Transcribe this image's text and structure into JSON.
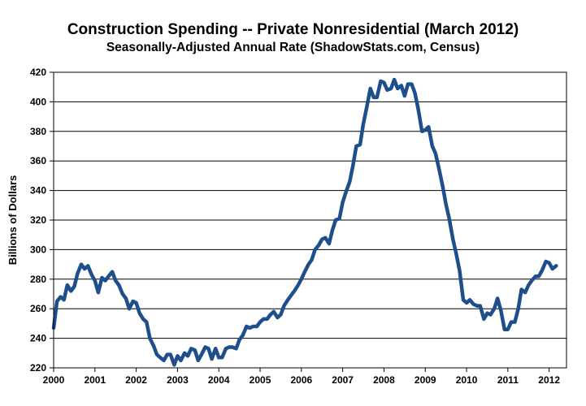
{
  "chart_data": {
    "type": "line",
    "title": "Construction Spending -- Private Nonresidential (March 2012)",
    "subtitle": "Seasonally-Adjusted Annual Rate (ShadowStats.com, Census)",
    "xlabel": "",
    "ylabel": "Billions of Dollars",
    "xlim": [
      2000,
      2012.42
    ],
    "ylim": [
      220,
      420
    ],
    "x_ticks": [
      "2000",
      "2001",
      "2002",
      "2003",
      "2004",
      "2005",
      "2006",
      "2007",
      "2008",
      "2009",
      "2010",
      "2011",
      "2012"
    ],
    "y_ticks": [
      "220",
      "240",
      "260",
      "280",
      "300",
      "320",
      "340",
      "360",
      "380",
      "400",
      "420"
    ],
    "grid": true,
    "legend": "none",
    "series": [
      {
        "name": "Private Nonresidential",
        "color": "#1f4e8c",
        "x": [
          2000.0,
          2000.08,
          2000.17,
          2000.25,
          2000.33,
          2000.42,
          2000.5,
          2000.58,
          2000.67,
          2000.75,
          2000.83,
          2000.92,
          2001.0,
          2001.08,
          2001.17,
          2001.25,
          2001.33,
          2001.42,
          2001.5,
          2001.58,
          2001.67,
          2001.75,
          2001.83,
          2001.92,
          2002.0,
          2002.08,
          2002.17,
          2002.25,
          2002.33,
          2002.42,
          2002.5,
          2002.58,
          2002.67,
          2002.75,
          2002.83,
          2002.92,
          2003.0,
          2003.08,
          2003.17,
          2003.25,
          2003.33,
          2003.42,
          2003.5,
          2003.58,
          2003.67,
          2003.75,
          2003.83,
          2003.92,
          2004.0,
          2004.08,
          2004.17,
          2004.25,
          2004.33,
          2004.42,
          2004.5,
          2004.58,
          2004.67,
          2004.75,
          2004.83,
          2004.92,
          2005.0,
          2005.08,
          2005.17,
          2005.25,
          2005.33,
          2005.42,
          2005.5,
          2005.58,
          2005.67,
          2005.75,
          2005.83,
          2005.92,
          2006.0,
          2006.08,
          2006.17,
          2006.25,
          2006.33,
          2006.42,
          2006.5,
          2006.58,
          2006.67,
          2006.75,
          2006.83,
          2006.92,
          2007.0,
          2007.08,
          2007.17,
          2007.25,
          2007.33,
          2007.42,
          2007.5,
          2007.58,
          2007.67,
          2007.75,
          2007.83,
          2007.92,
          2008.0,
          2008.08,
          2008.17,
          2008.25,
          2008.33,
          2008.42,
          2008.5,
          2008.58,
          2008.67,
          2008.75,
          2008.83,
          2008.92,
          2009.0,
          2009.08,
          2009.17,
          2009.25,
          2009.33,
          2009.42,
          2009.5,
          2009.58,
          2009.67,
          2009.75,
          2009.83,
          2009.92,
          2010.0,
          2010.08,
          2010.17,
          2010.25,
          2010.33,
          2010.42,
          2010.5,
          2010.58,
          2010.67,
          2010.75,
          2010.83,
          2010.92,
          2011.0,
          2011.08,
          2011.17,
          2011.25,
          2011.33,
          2011.42,
          2011.5,
          2011.58,
          2011.67,
          2011.75,
          2011.83,
          2011.92,
          2012.0,
          2012.08,
          2012.17
        ],
        "values": [
          247,
          265,
          268,
          266,
          276,
          272,
          275,
          284,
          290,
          287,
          289,
          283,
          279,
          271,
          281,
          279,
          282,
          285,
          279,
          276,
          270,
          267,
          260,
          265,
          264,
          257,
          253,
          251,
          240,
          235,
          229,
          227,
          225,
          229,
          229,
          222,
          228,
          225,
          230,
          228,
          233,
          232,
          225,
          229,
          234,
          233,
          226,
          233,
          227,
          227,
          233,
          234,
          234,
          233,
          239,
          242,
          248,
          247,
          248,
          248,
          251,
          253,
          253,
          256,
          258,
          254,
          256,
          262,
          266,
          269,
          272,
          276,
          280,
          285,
          290,
          293,
          300,
          303,
          307,
          308,
          304,
          313,
          320,
          321,
          332,
          339,
          346,
          357,
          370,
          371,
          385,
          396,
          409,
          403,
          403,
          414,
          413,
          408,
          409,
          415,
          409,
          411,
          404,
          412,
          412,
          406,
          395,
          380,
          381,
          383,
          370,
          365,
          355,
          343,
          331,
          321,
          307,
          297,
          286,
          266,
          264,
          266,
          263,
          262,
          262,
          253,
          257,
          256,
          260,
          267,
          259,
          246,
          246,
          251,
          251,
          260,
          273,
          271,
          276,
          279,
          282,
          282,
          286,
          292,
          291,
          287,
          289
        ]
      }
    ]
  }
}
